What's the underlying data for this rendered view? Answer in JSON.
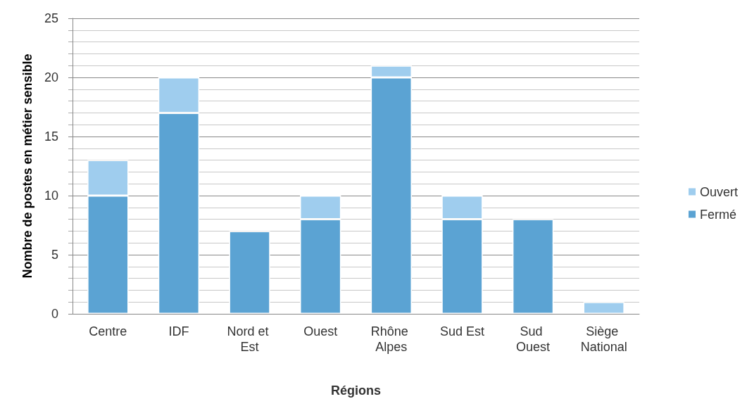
{
  "chart_data": {
    "type": "bar",
    "stacked": true,
    "xlabel": "Régions",
    "ylabel": "Nombre de postes en métier sensible",
    "categories": [
      "Centre",
      "IDF",
      "Nord et Est",
      "Ouest",
      "Rhône Alpes",
      "Sud Est",
      "Sud Ouest",
      "Siège National"
    ],
    "series": [
      {
        "name": "Fermé",
        "color": "#5ba3d3",
        "values": [
          10,
          17,
          7,
          8,
          20,
          8,
          8,
          0
        ]
      },
      {
        "name": "Ouvert",
        "color": "#9fcdee",
        "values": [
          3,
          3,
          0,
          2,
          1,
          2,
          0,
          1
        ]
      }
    ],
    "ylim": [
      0,
      25
    ],
    "yticks": [
      0,
      5,
      10,
      15,
      20,
      25
    ],
    "grid": "y",
    "legend": "right"
  }
}
